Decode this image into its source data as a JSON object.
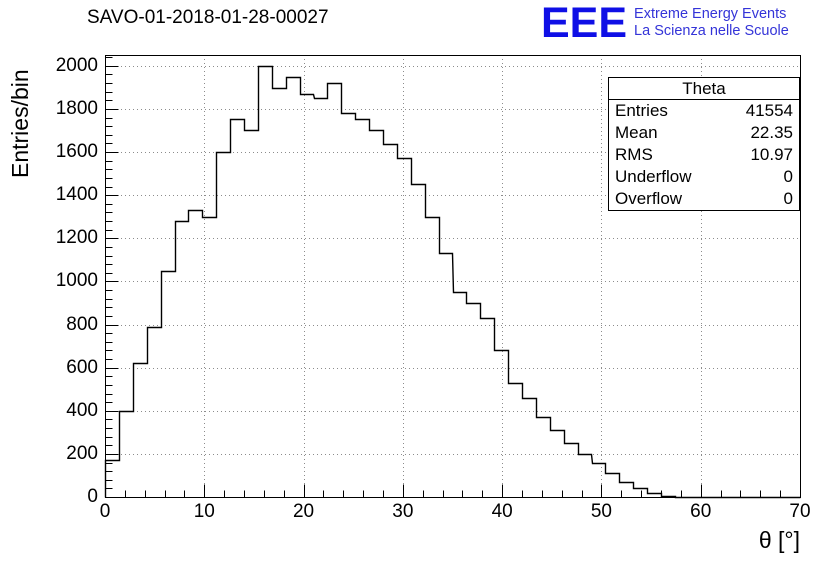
{
  "header": {
    "title": "SAVO-01-2018-01-28-00027",
    "logo": {
      "text": "EEE",
      "line1": "Extreme Energy Events",
      "line2": "La Scienza nelle Scuole",
      "color": "#0f0fe6",
      "text_color": "#3434d8"
    }
  },
  "stats": {
    "title": "Theta",
    "rows": [
      {
        "label": "Entries",
        "value": "41554"
      },
      {
        "label": "Mean",
        "value": "22.35"
      },
      {
        "label": "RMS",
        "value": "10.97"
      },
      {
        "label": "Underflow",
        "value": "0"
      },
      {
        "label": "Overflow",
        "value": "0"
      }
    ]
  },
  "chart_data": {
    "type": "bar",
    "title": "SAVO-01-2018-01-28-00027",
    "xlabel": "θ [°]",
    "ylabel": "Entries/bin",
    "xlim": [
      0,
      70
    ],
    "ylim": [
      0,
      2050
    ],
    "x_ticks": [
      0,
      10,
      20,
      30,
      40,
      50,
      60,
      70
    ],
    "y_ticks": [
      0,
      200,
      400,
      600,
      800,
      1000,
      1200,
      1400,
      1600,
      1800,
      2000
    ],
    "x_minor_step": 2,
    "y_minor_step": 40,
    "grid": true,
    "grid_style": "dotted",
    "line_color": "#000000",
    "bin_start": 0,
    "bin_width": 1.4,
    "values": [
      170,
      400,
      620,
      790,
      1050,
      1280,
      1330,
      1300,
      1600,
      1755,
      1700,
      2000,
      1895,
      1950,
      1870,
      1850,
      1920,
      1780,
      1755,
      1700,
      1635,
      1570,
      1450,
      1300,
      1130,
      950,
      900,
      830,
      680,
      530,
      460,
      370,
      310,
      250,
      200,
      160,
      110,
      70,
      40,
      20,
      5,
      0,
      0,
      0,
      0,
      0,
      0,
      0,
      0,
      0
    ],
    "stats": {
      "name": "Theta",
      "entries": 41554,
      "mean": 22.35,
      "rms": 10.97,
      "underflow": 0,
      "overflow": 0
    }
  }
}
